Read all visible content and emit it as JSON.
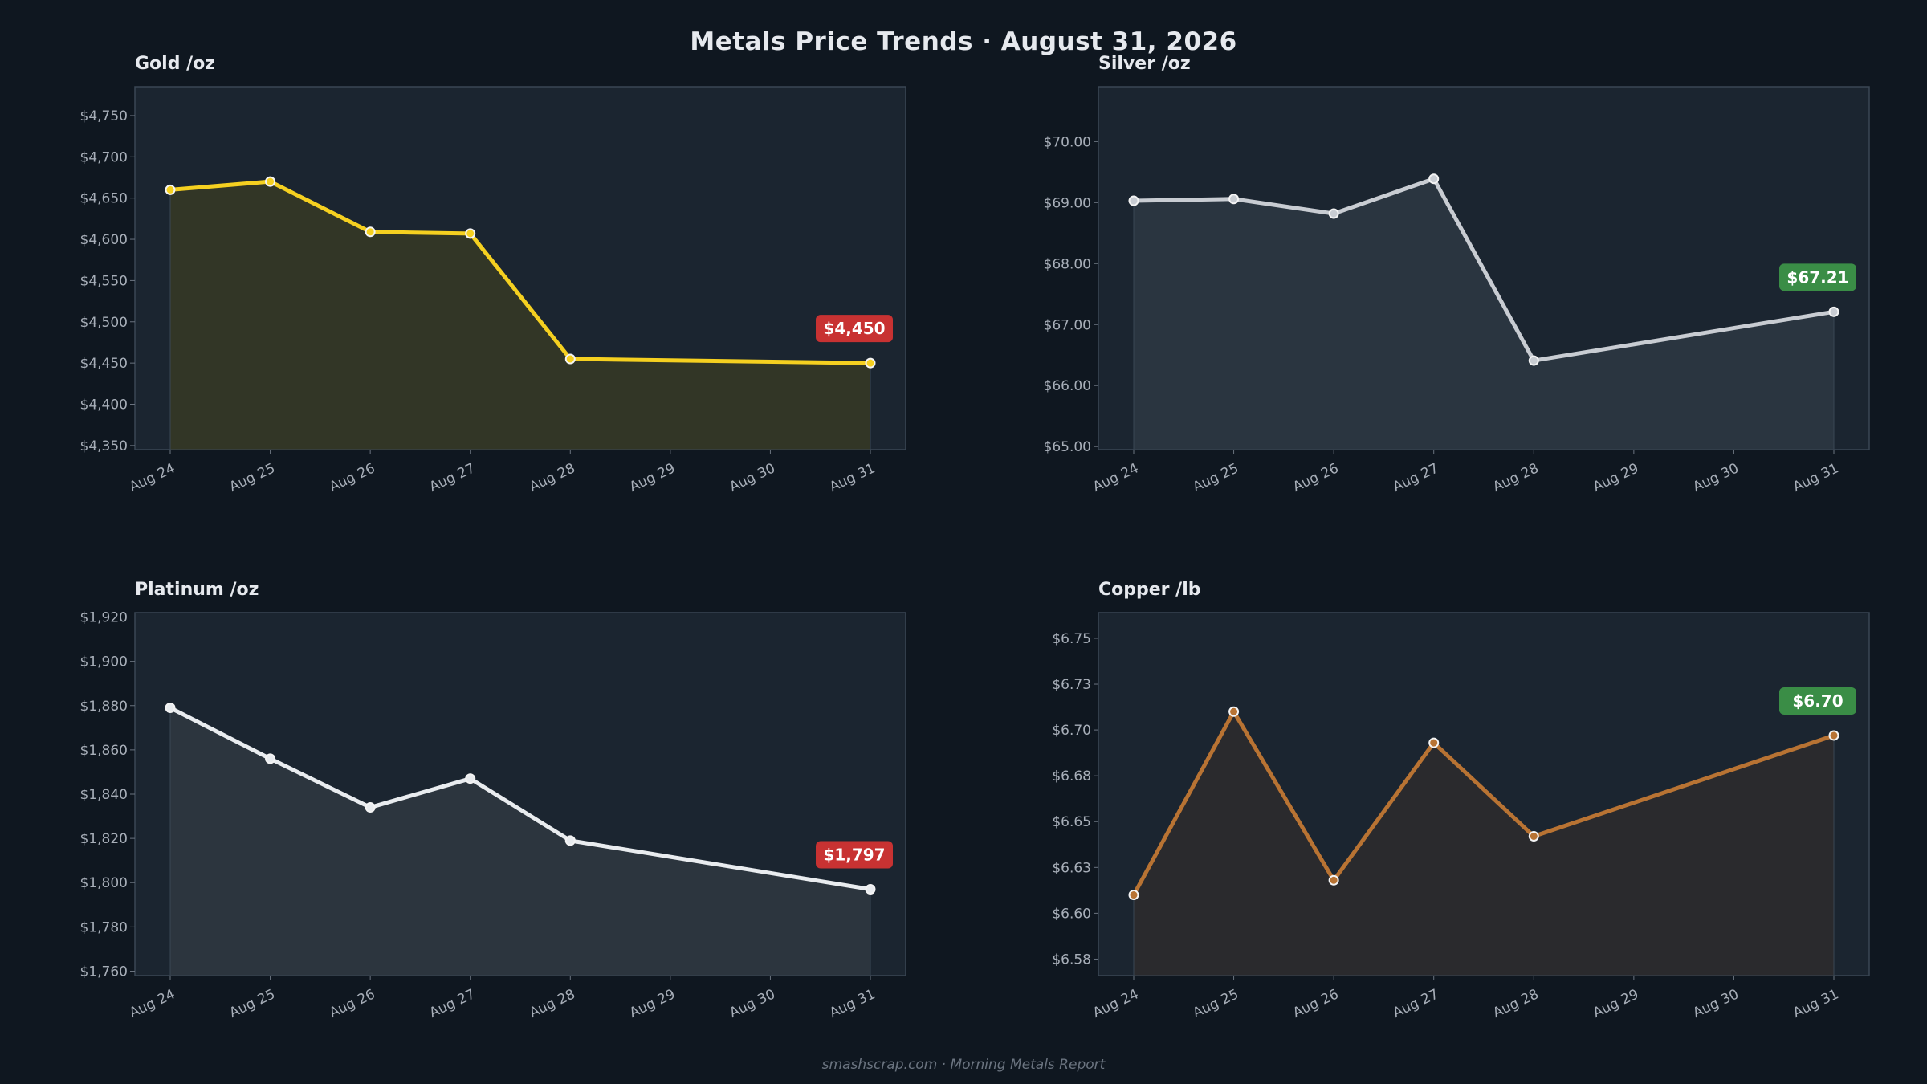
{
  "header": {
    "title": "Metals Price Trends  ·  August 31, 2026"
  },
  "footer": {
    "text": "smashscrap.com  ·  Morning Metals Report"
  },
  "chart_data": [
    {
      "type": "line",
      "title": "Gold  /oz",
      "categories": [
        "Aug 24",
        "Aug 25",
        "Aug 26",
        "Aug 27",
        "Aug 28",
        "Aug 29",
        "Aug 30",
        "Aug 31"
      ],
      "x": [
        "Aug 24",
        "Aug 25",
        "Aug 26",
        "Aug 27",
        "Aug 28",
        "Aug 31"
      ],
      "values": [
        4660,
        4670,
        4609,
        4607,
        4455,
        4450
      ],
      "ylim": [
        4345,
        4785
      ],
      "yticks": [
        4350,
        4400,
        4450,
        4500,
        4550,
        4600,
        4650,
        4700,
        4750
      ],
      "ytick_labels": [
        "$4,350",
        "$4,400",
        "$4,450",
        "$4,500",
        "$4,550",
        "$4,600",
        "$4,650",
        "$4,700",
        "$4,750"
      ],
      "last_label": "$4,450",
      "line_color": "#f5d020",
      "fill_color": "#323626",
      "badge_color": "#c83232",
      "grid": false
    },
    {
      "type": "line",
      "title": "Silver  /oz",
      "categories": [
        "Aug 24",
        "Aug 25",
        "Aug 26",
        "Aug 27",
        "Aug 28",
        "Aug 29",
        "Aug 30",
        "Aug 31"
      ],
      "x": [
        "Aug 24",
        "Aug 25",
        "Aug 26",
        "Aug 27",
        "Aug 28",
        "Aug 31"
      ],
      "values": [
        69.03,
        69.06,
        68.82,
        69.39,
        66.41,
        67.21
      ],
      "ylim": [
        64.95,
        70.9
      ],
      "yticks": [
        65,
        66,
        67,
        68,
        69,
        70
      ],
      "ytick_labels": [
        "$65.00",
        "$66.00",
        "$67.00",
        "$68.00",
        "$69.00",
        "$70.00"
      ],
      "last_label": "$67.21",
      "line_color": "#c8ccd2",
      "fill_color": "#2a3540",
      "badge_color": "#3a8d46",
      "grid": false
    },
    {
      "type": "line",
      "title": "Platinum  /oz",
      "categories": [
        "Aug 24",
        "Aug 25",
        "Aug 26",
        "Aug 27",
        "Aug 28",
        "Aug 29",
        "Aug 30",
        "Aug 31"
      ],
      "x": [
        "Aug 24",
        "Aug 25",
        "Aug 26",
        "Aug 27",
        "Aug 28",
        "Aug 31"
      ],
      "values": [
        1879,
        1856,
        1834,
        1847,
        1819,
        1797
      ],
      "ylim": [
        1758,
        1922
      ],
      "yticks": [
        1760,
        1780,
        1800,
        1820,
        1840,
        1860,
        1880,
        1900,
        1920
      ],
      "ytick_labels": [
        "$1,760",
        "$1,780",
        "$1,800",
        "$1,820",
        "$1,840",
        "$1,860",
        "$1,880",
        "$1,900",
        "$1,920"
      ],
      "last_label": "$1,797",
      "line_color": "#e9ecef",
      "fill_color": "#2c353e",
      "badge_color": "#c83232",
      "grid": false
    },
    {
      "type": "line",
      "title": "Copper  /lb",
      "categories": [
        "Aug 24",
        "Aug 25",
        "Aug 26",
        "Aug 27",
        "Aug 28",
        "Aug 29",
        "Aug 30",
        "Aug 31"
      ],
      "x": [
        "Aug 24",
        "Aug 25",
        "Aug 26",
        "Aug 27",
        "Aug 28",
        "Aug 31"
      ],
      "values": [
        6.61,
        6.71,
        6.618,
        6.693,
        6.642,
        6.697
      ],
      "ylim": [
        6.566,
        6.764
      ],
      "yticks": [
        6.575,
        6.6,
        6.625,
        6.65,
        6.675,
        6.7,
        6.725,
        6.75
      ],
      "ytick_labels": [
        "$6.58",
        "$6.60",
        "$6.63",
        "$6.65",
        "$6.68",
        "$6.70",
        "$6.73",
        "$6.75"
      ],
      "last_label": "$6.70",
      "line_color": "#b87333",
      "fill_color": "#2a2a2d",
      "badge_color": "#3a8d46",
      "grid": false
    }
  ]
}
